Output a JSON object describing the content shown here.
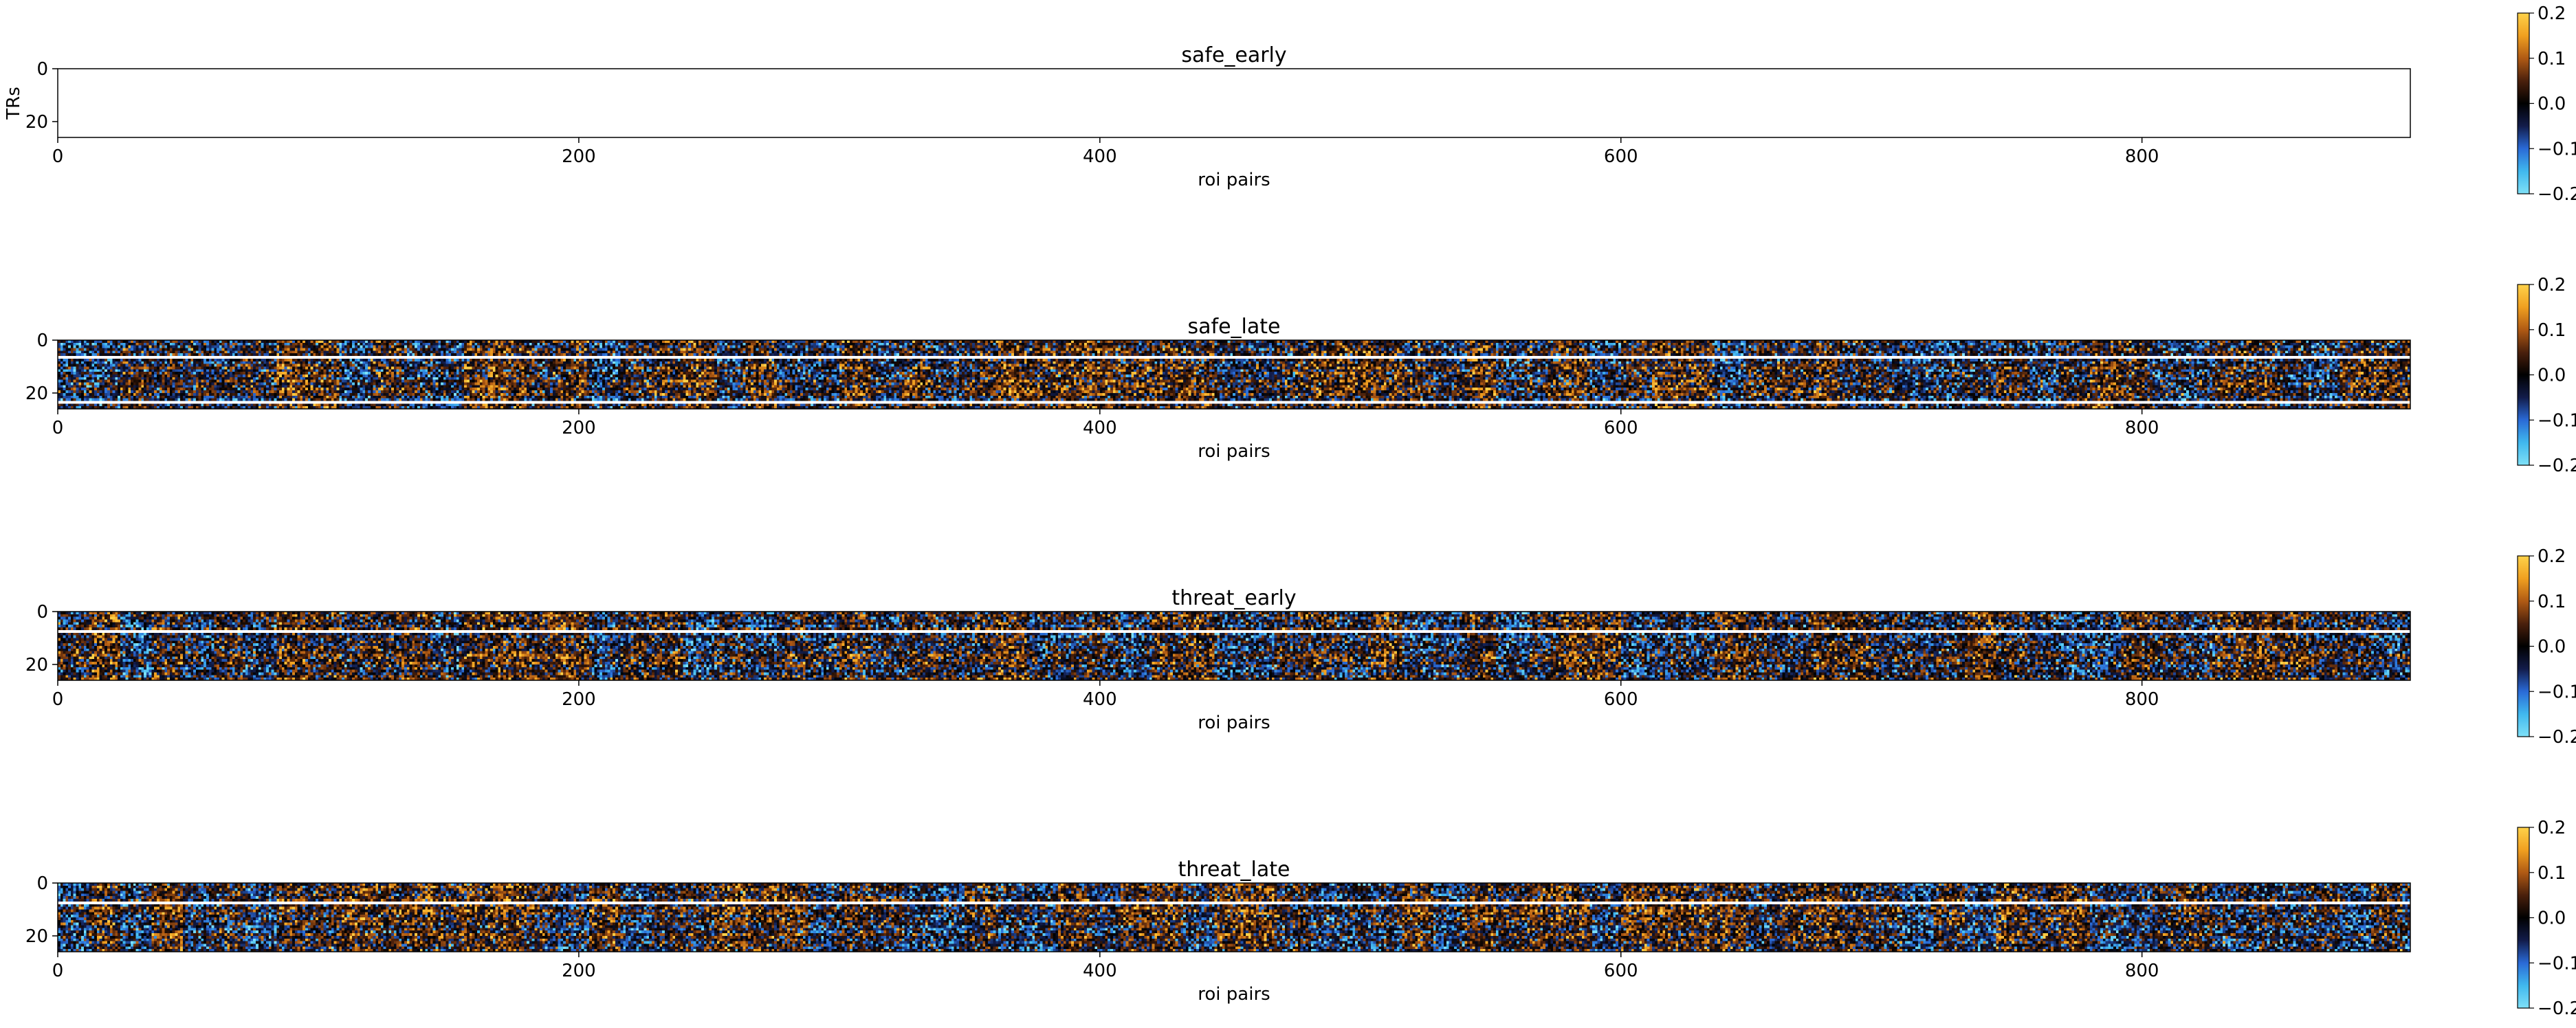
{
  "figure": {
    "background": "#ffffff",
    "colormap": [
      "#7fe0f7",
      "#40b8ee",
      "#2a6ad6",
      "#121c4a",
      "#000000",
      "#4a200c",
      "#b05a14",
      "#f0a020",
      "#ffd24a"
    ],
    "gap_color": "#ffffff"
  },
  "chart_data": [
    {
      "type": "heatmap",
      "title": "safe_early",
      "xlabel": "roi pairs",
      "ylabel": "TRs",
      "xlim": [
        0,
        903
      ],
      "ylim": [
        26,
        0
      ],
      "xticks": [
        0,
        200,
        400,
        600,
        800
      ],
      "yticks": [
        0,
        20
      ],
      "xtick_labels": [
        "0",
        "200",
        "400",
        "600",
        "800"
      ],
      "ytick_labels": [
        "0",
        "20"
      ],
      "n_cols": 903,
      "n_rows": 26,
      "empty": true,
      "blank_rows": [],
      "pattern_seed": 11,
      "colorbar": {
        "vmin": -0.2,
        "vmax": 0.2,
        "ticks": [
          0.2,
          0.1,
          0.0,
          -0.1,
          -0.2
        ],
        "tick_labels": [
          "0.2",
          "0.1",
          "0.0",
          "−0.1",
          "−0.2"
        ]
      }
    },
    {
      "type": "heatmap",
      "title": "safe_late",
      "xlabel": "roi pairs",
      "ylabel": "",
      "xlim": [
        0,
        903
      ],
      "ylim": [
        26,
        0
      ],
      "xticks": [
        0,
        200,
        400,
        600,
        800
      ],
      "yticks": [
        0,
        20
      ],
      "xtick_labels": [
        "0",
        "200",
        "400",
        "600",
        "800"
      ],
      "ytick_labels": [
        "0",
        "20"
      ],
      "n_cols": 903,
      "n_rows": 26,
      "empty": false,
      "blank_rows": [
        6,
        23
      ],
      "pattern_seed": 23,
      "colorbar": {
        "vmin": -0.2,
        "vmax": 0.2,
        "ticks": [
          0.2,
          0.1,
          0.0,
          -0.1,
          -0.2
        ],
        "tick_labels": [
          "0.2",
          "0.1",
          "0.0",
          "−0.1",
          "−0.2"
        ]
      }
    },
    {
      "type": "heatmap",
      "title": "threat_early",
      "xlabel": "roi pairs",
      "ylabel": "",
      "xlim": [
        0,
        903
      ],
      "ylim": [
        26,
        0
      ],
      "xticks": [
        0,
        200,
        400,
        600,
        800
      ],
      "yticks": [
        0,
        20
      ],
      "xtick_labels": [
        "0",
        "200",
        "400",
        "600",
        "800"
      ],
      "ytick_labels": [
        "0",
        "20"
      ],
      "n_cols": 903,
      "n_rows": 26,
      "empty": false,
      "blank_rows": [
        7
      ],
      "pattern_seed": 37,
      "colorbar": {
        "vmin": -0.2,
        "vmax": 0.2,
        "ticks": [
          0.2,
          0.1,
          0.0,
          -0.1,
          -0.2
        ],
        "tick_labels": [
          "0.2",
          "0.1",
          "0.0",
          "−0.1",
          "−0.2"
        ]
      }
    },
    {
      "type": "heatmap",
      "title": "threat_late",
      "xlabel": "roi pairs",
      "ylabel": "",
      "xlim": [
        0,
        903
      ],
      "ylim": [
        26,
        0
      ],
      "xticks": [
        0,
        200,
        400,
        600,
        800
      ],
      "yticks": [
        0,
        20
      ],
      "xtick_labels": [
        "0",
        "200",
        "400",
        "600",
        "800"
      ],
      "ytick_labels": [
        "0",
        "20"
      ],
      "n_cols": 903,
      "n_rows": 26,
      "empty": false,
      "blank_rows": [
        7
      ],
      "pattern_seed": 53,
      "colorbar": {
        "vmin": -0.2,
        "vmax": 0.2,
        "ticks": [
          0.2,
          0.1,
          0.0,
          -0.1,
          -0.2
        ],
        "tick_labels": [
          "0.2",
          "0.1",
          "0.0",
          "−0.1",
          "−0.2"
        ]
      }
    }
  ]
}
